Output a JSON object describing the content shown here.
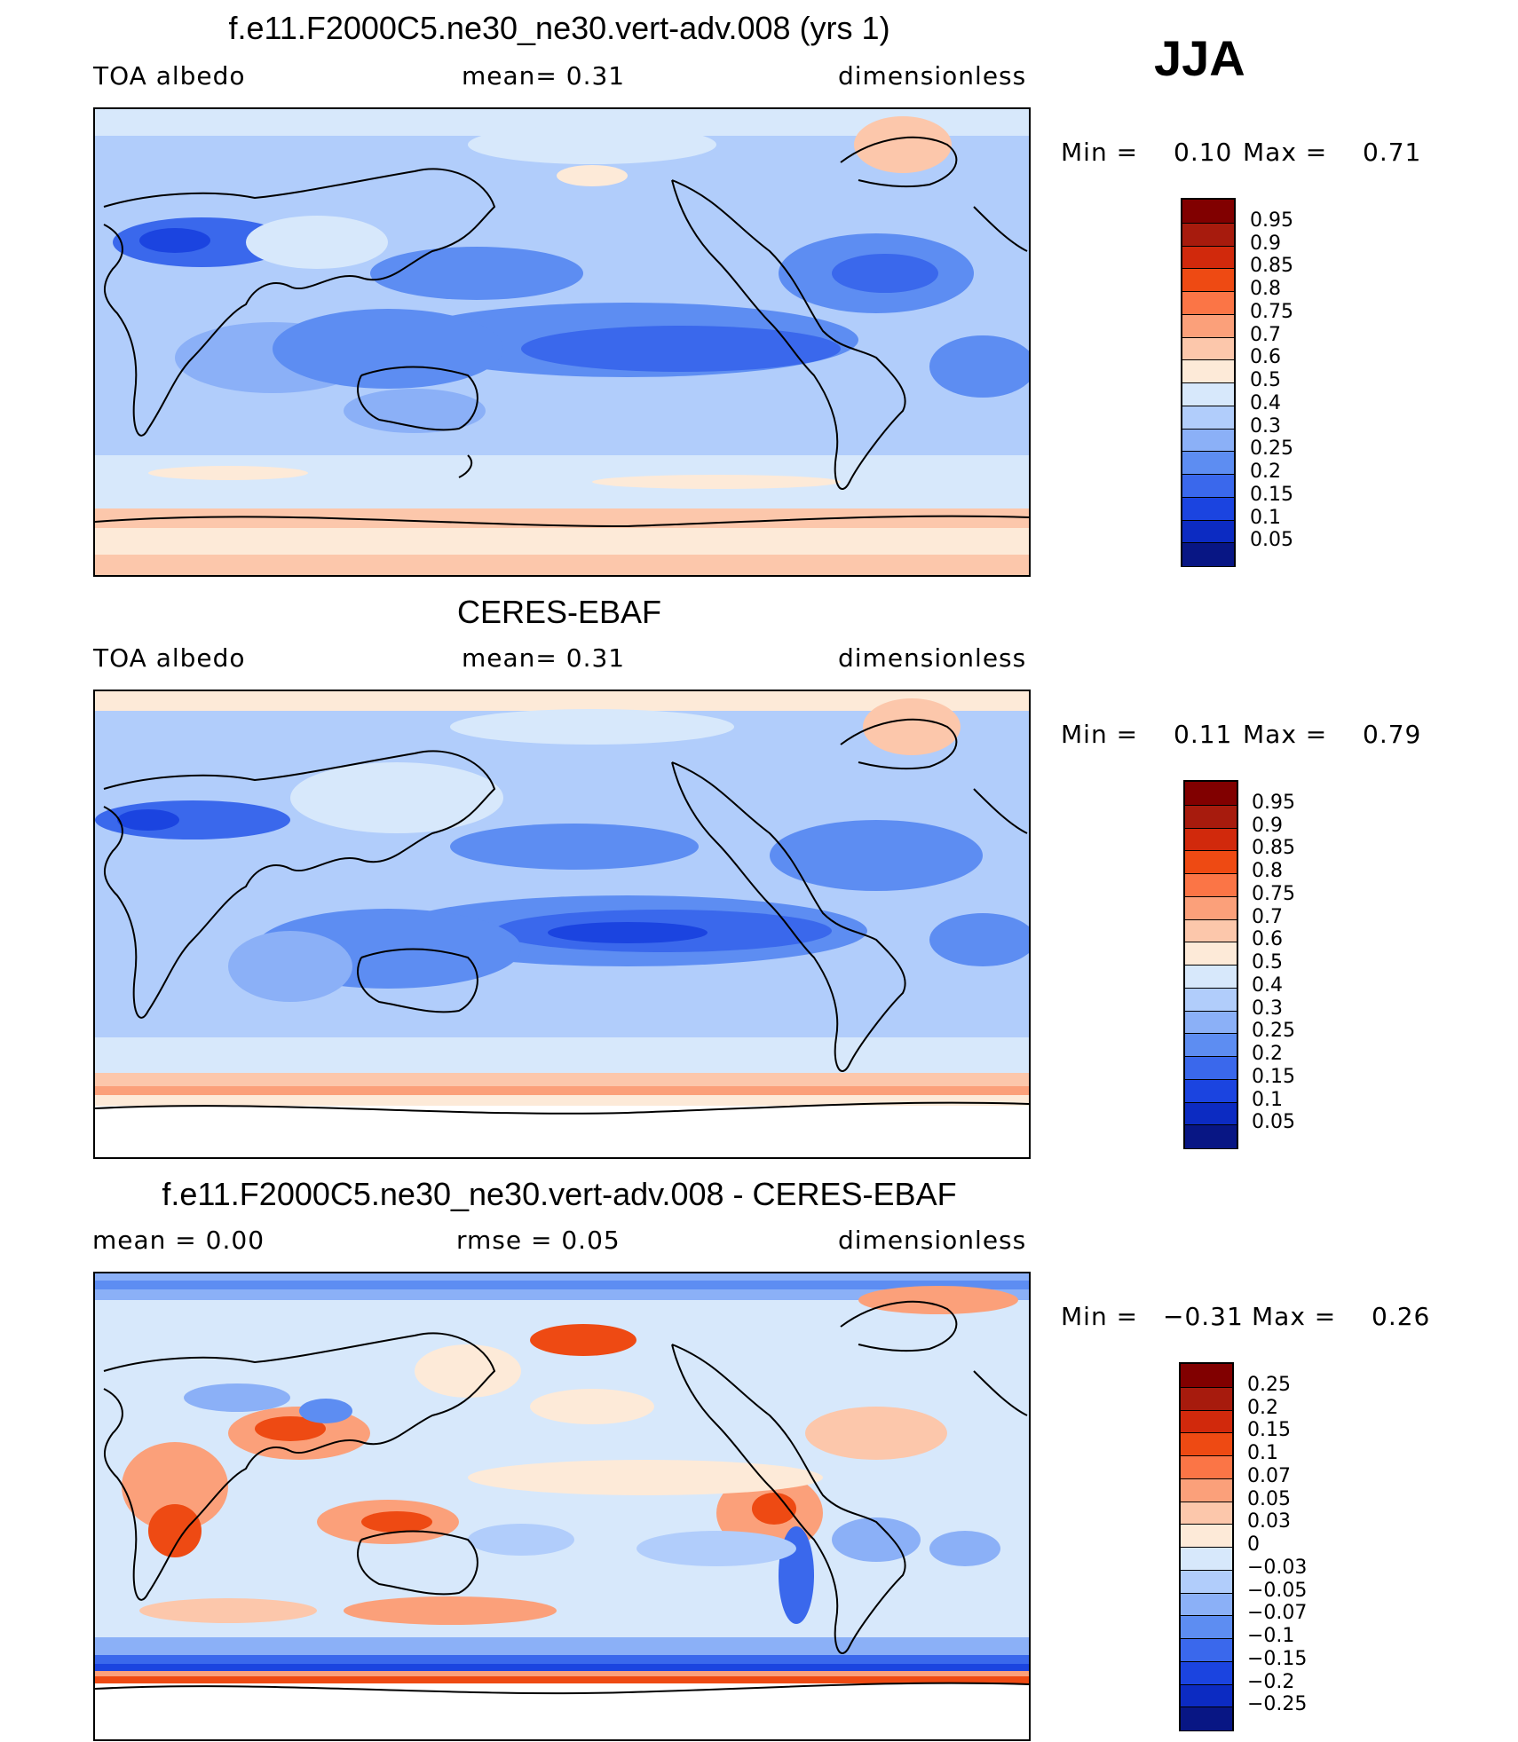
{
  "season": "JJA",
  "panels": [
    {
      "id": "model",
      "title": "f.e11.F2000C5.ne30_ne30.vert-adv.008 (yrs 1)",
      "left_label": "TOA  albedo",
      "center_label": "mean=     0.31",
      "right_label": "dimensionless",
      "min_label": "Min  =",
      "min_value": "0.10",
      "max_label": "Max  =",
      "max_value": "0.71",
      "colorbar_ticks": [
        "0.95",
        "0.9",
        "0.85",
        "0.8",
        "0.75",
        "0.7",
        "0.6",
        "0.5",
        "0.4",
        "0.3",
        "0.25",
        "0.2",
        "0.15",
        "0.1",
        "0.05"
      ]
    },
    {
      "id": "obs",
      "title": "CERES-EBAF",
      "left_label": "TOA  albedo",
      "center_label": "mean=     0.31",
      "right_label": "dimensionless",
      "min_label": "Min  =",
      "min_value": "0.11",
      "max_label": "Max  =",
      "max_value": "0.79",
      "colorbar_ticks": [
        "0.95",
        "0.9",
        "0.85",
        "0.8",
        "0.75",
        "0.7",
        "0.6",
        "0.5",
        "0.4",
        "0.3",
        "0.25",
        "0.2",
        "0.15",
        "0.1",
        "0.05"
      ]
    },
    {
      "id": "diff",
      "title": "f.e11.F2000C5.ne30_ne30.vert-adv.008 - CERES-EBAF",
      "left_label": "mean  =      0.00",
      "center_label": "rmse  =      0.05",
      "right_label": "dimensionless",
      "min_label": "Min  =",
      "min_value": "−0.31",
      "max_label": "Max  =",
      "max_value": "0.26",
      "colorbar_ticks": [
        "0.25",
        "0.2",
        "0.15",
        "0.1",
        "0.07",
        "0.05",
        "0.03",
        "0",
        "−0.03",
        "−0.05",
        "−0.07",
        "−0.1",
        "−0.15",
        "−0.2",
        "−0.25"
      ]
    }
  ],
  "colors": {
    "abs_scale": [
      "#810000",
      "#a71b0d",
      "#d1290c",
      "#ee4a13",
      "#fb7546",
      "#fba07a",
      "#fcc7ab",
      "#fdead8",
      "#d7e8fb",
      "#b1cdfb",
      "#8bb0f7",
      "#5d8df2",
      "#3a68ec",
      "#1b44e0",
      "#0c2bc2",
      "#081684"
    ],
    "diff_scale": [
      "#810000",
      "#a71b0d",
      "#d1290c",
      "#ee4a13",
      "#fb7546",
      "#fba07a",
      "#fcc7ab",
      "#fdead8",
      "#d7e8fb",
      "#b1cdfb",
      "#8bb0f7",
      "#5d8df2",
      "#3a68ec",
      "#1b44e0",
      "#0c2bc2",
      "#081684"
    ]
  }
}
